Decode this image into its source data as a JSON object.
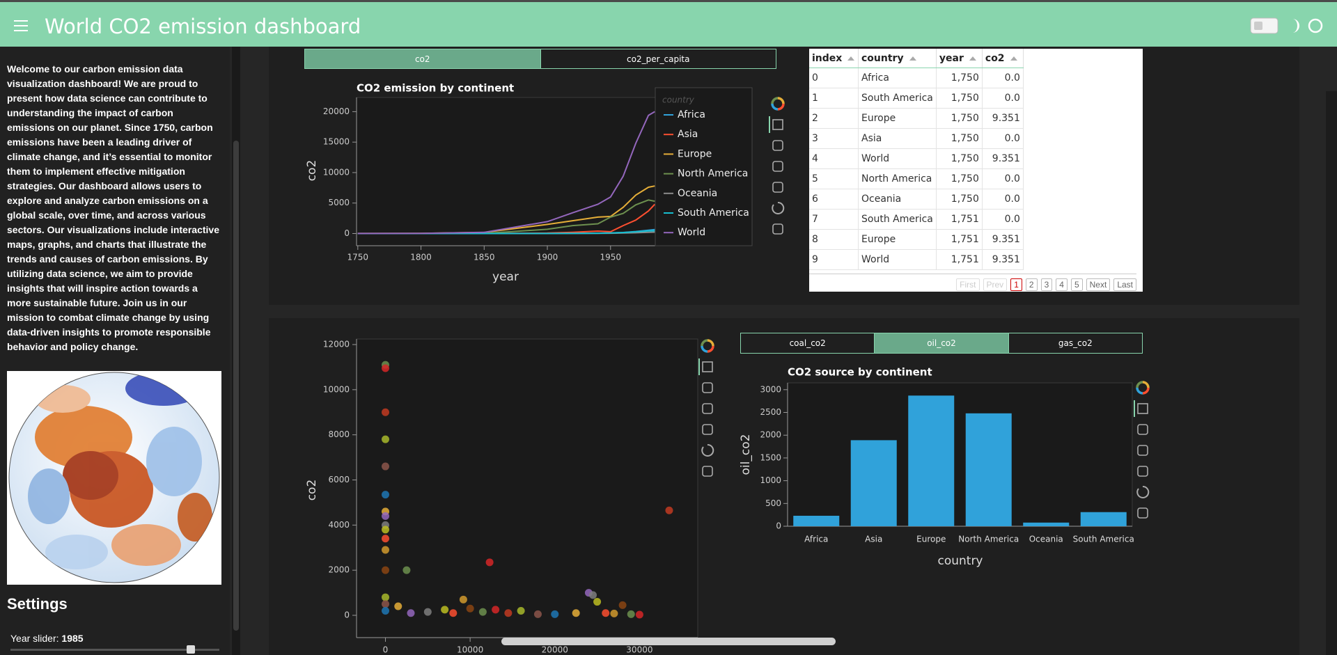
{
  "header": {
    "title": "World CO2 emission dashboard"
  },
  "sidebar": {
    "intro": "Welcome to our carbon emission data visualization dashboard! We are proud to present how data science can contribute to understanding the impact of carbon emissions on our planet. Since 1750, carbon emissions have been a leading driver of climate change, and it’s essential to monitor them to implement effective mitigation strategies. Our dashboard allows users to explore and analyze carbon emissions on a global scale, over time, and across various sectors. Our visualizations include interactive maps, graphs, and charts that illustrate the trends and causes of carbon emissions. By utilizing data science, we aim to provide insights that will inspire action towards a more sustainable future. Join us in our mission to combat climate change by using data-driven insights to promote responsible behavior and policy change.",
    "settings_title": "Settings",
    "slider_label": "Year slider:",
    "slider_value": 1985
  },
  "tabs_top": {
    "items": [
      "co2",
      "co2_per_capita"
    ],
    "active": 0
  },
  "tabs_bottom": {
    "items": [
      "coal_co2",
      "oil_co2",
      "gas_co2"
    ],
    "active": 1
  },
  "table": {
    "columns": [
      "index",
      "country",
      "year",
      "co2"
    ],
    "rows": [
      [
        "0",
        "Africa",
        "1,750",
        "0.0"
      ],
      [
        "1",
        "South America",
        "1,750",
        "0.0"
      ],
      [
        "2",
        "Europe",
        "1,750",
        "9.351"
      ],
      [
        "3",
        "Asia",
        "1,750",
        "0.0"
      ],
      [
        "4",
        "World",
        "1,750",
        "9.351"
      ],
      [
        "5",
        "North America",
        "1,750",
        "0.0"
      ],
      [
        "6",
        "Oceania",
        "1,750",
        "0.0"
      ],
      [
        "7",
        "South America",
        "1,751",
        "0.0"
      ],
      [
        "8",
        "Europe",
        "1,751",
        "9.351"
      ],
      [
        "9",
        "World",
        "1,751",
        "9.351"
      ]
    ],
    "nav_before": [
      "First",
      "Prev"
    ],
    "pages": [
      "1",
      "2",
      "3",
      "4",
      "5"
    ],
    "nav_after": [
      "Next",
      "Last"
    ],
    "active_page": 0
  },
  "chart_data": [
    {
      "type": "line",
      "title": "CO2 emission by continent",
      "xlabel": "year",
      "ylabel": "co2",
      "legend_title": "country",
      "legend": "top-right",
      "x": [
        1750,
        1800,
        1850,
        1900,
        1920,
        1940,
        1950,
        1960,
        1970,
        1980,
        1985
      ],
      "series": [
        {
          "name": "Africa",
          "color": "#30a2da",
          "values": [
            0,
            0,
            0,
            10,
            30,
            60,
            100,
            170,
            330,
            550,
            650
          ]
        },
        {
          "name": "Asia",
          "color": "#fc4f30",
          "values": [
            0,
            0,
            0,
            80,
            200,
            400,
            300,
            1300,
            2200,
            3700,
            4800
          ]
        },
        {
          "name": "Europe",
          "color": "#e5ae38",
          "values": [
            9,
            28,
            180,
            1500,
            2100,
            2700,
            2800,
            4300,
            6300,
            7600,
            7800
          ]
        },
        {
          "name": "North America",
          "color": "#6d904f",
          "values": [
            0,
            1,
            15,
            700,
            1300,
            1600,
            2700,
            3300,
            4700,
            5500,
            5300
          ]
        },
        {
          "name": "Oceania",
          "color": "#8b8b8b",
          "values": [
            0,
            0,
            0,
            10,
            20,
            30,
            40,
            80,
            130,
            200,
            230
          ]
        },
        {
          "name": "South America",
          "color": "#17becf",
          "values": [
            0,
            0,
            0,
            5,
            20,
            40,
            80,
            160,
            290,
            430,
            450
          ]
        },
        {
          "name": "World",
          "color": "#9467bd",
          "values": [
            9,
            28,
            197,
            1950,
            3400,
            4800,
            6000,
            9400,
            14800,
            19400,
            20000
          ]
        }
      ],
      "xlim": [
        1749,
        2062
      ],
      "ylim": [
        -2000,
        22330
      ],
      "xticks": [
        1750,
        1800,
        1850,
        1900,
        1950
      ],
      "yticks": [
        0,
        5000,
        10000,
        15000,
        20000
      ]
    },
    {
      "type": "scatter",
      "ylabel": "co2",
      "x": [
        0,
        0,
        0,
        0,
        0,
        0,
        0,
        0,
        0,
        0,
        0,
        0,
        0,
        2500,
        12300,
        33500,
        0,
        0,
        0,
        1500,
        3000,
        5000,
        7000,
        8000,
        9200,
        10000,
        11500,
        13000,
        14500,
        16000,
        18000,
        20000,
        22500,
        24000,
        24500,
        25000,
        26000,
        27000,
        28000,
        29000,
        30000
      ],
      "values": [
        11100,
        10950,
        9000,
        7800,
        6600,
        5350,
        4600,
        4400,
        4000,
        3800,
        3400,
        2900,
        2000,
        2000,
        2350,
        4650,
        800,
        500,
        200,
        400,
        100,
        150,
        250,
        100,
        700,
        300,
        150,
        250,
        100,
        200,
        50,
        50,
        100,
        1000,
        900,
        600,
        100,
        80,
        450,
        50,
        30
      ],
      "palette": [
        "#6d904f",
        "#d62728",
        "#c23b22",
        "#a8b82b",
        "#8c564b",
        "#1f77b4",
        "#e5ae38",
        "#9467bd",
        "#7f7f7f",
        "#bcbd22",
        "#fc4f30",
        "#d19a2e",
        "#8b4513"
      ],
      "xlim": [
        -3412,
        36873
      ],
      "ylim": [
        -987,
        12247
      ],
      "xticks": [
        0,
        10000,
        20000,
        30000
      ],
      "yticks": [
        0,
        2000,
        4000,
        6000,
        8000,
        10000,
        12000
      ]
    },
    {
      "type": "bar",
      "title": "CO2 source by continent",
      "xlabel": "country",
      "ylabel": "oil_co2",
      "categories": [
        "Africa",
        "Asia",
        "Europe",
        "North America",
        "Oceania",
        "South America"
      ],
      "values": [
        230,
        1890,
        2870,
        2480,
        80,
        310
      ],
      "color": "#30a2da",
      "ylim": [
        0,
        3150
      ],
      "yticks": [
        0,
        500,
        1000,
        1500,
        2000,
        2500,
        3000
      ]
    }
  ]
}
